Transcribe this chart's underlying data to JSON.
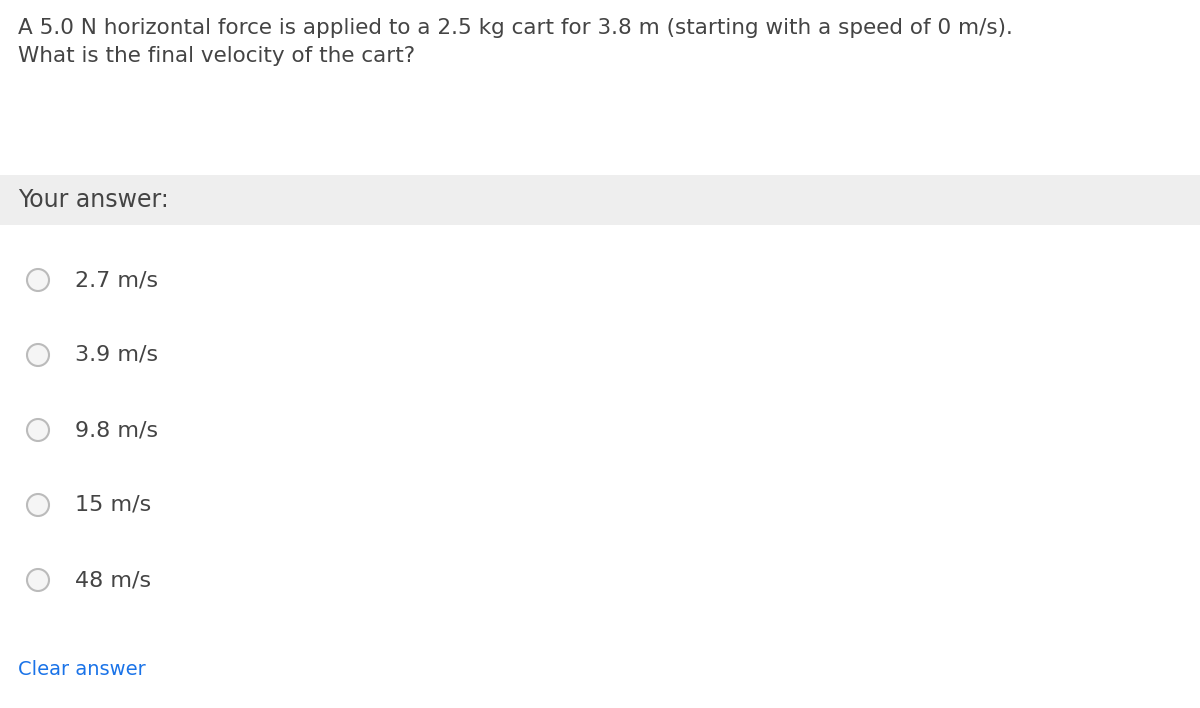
{
  "question_line1": "A 5.0 N horizontal force is applied to a 2.5 kg cart for 3.8 m (starting with a speed of 0 m/s).",
  "question_line2": "What is the final velocity of the cart?",
  "your_answer_label": "Your answer:",
  "choices": [
    "2.7 m/s",
    "3.9 m/s",
    "9.8 m/s",
    "15 m/s",
    "48 m/s"
  ],
  "clear_answer_text": "Clear answer",
  "bg_color": "#ffffff",
  "answer_bar_color": "#eeeeee",
  "question_text_color": "#444444",
  "choice_text_color": "#444444",
  "clear_answer_color": "#1a73e8",
  "radio_edge_color": "#bbbbbb",
  "radio_face_color": "#f5f5f5",
  "question_fontsize": 15.5,
  "answer_label_fontsize": 17,
  "choice_fontsize": 16,
  "clear_fontsize": 14,
  "fig_width": 12.0,
  "fig_height": 7.08,
  "dpi": 100
}
